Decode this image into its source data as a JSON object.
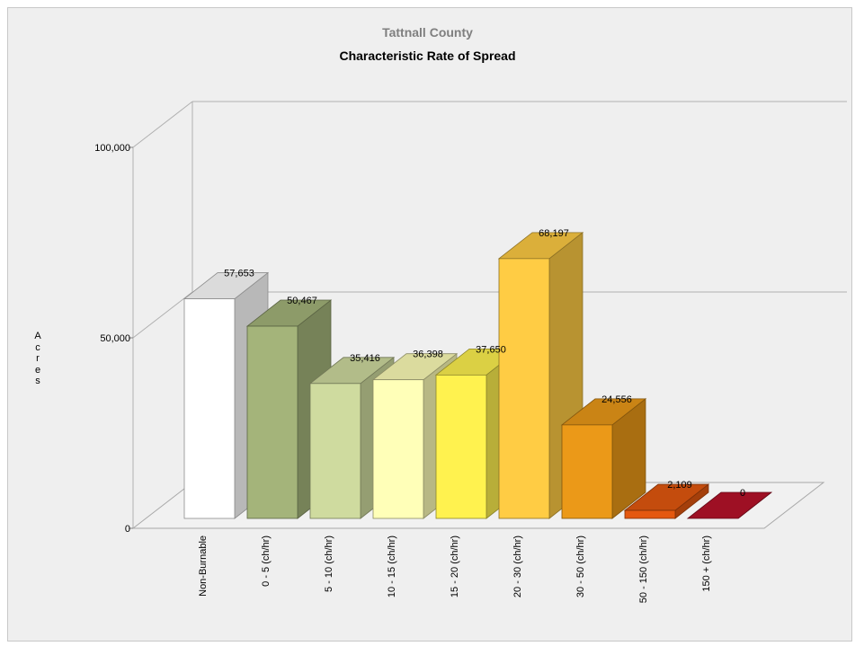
{
  "chart_data": {
    "type": "bar",
    "title": "Tattnall County",
    "subtitle": "Characteristic Rate of Spread",
    "ylabel": "Acres",
    "xlabel": "",
    "ylim": [
      0,
      100000
    ],
    "yticks": [
      0,
      50000,
      100000
    ],
    "ytick_labels": [
      "0",
      "50,000",
      "100,000"
    ],
    "grid": true,
    "three_d": true,
    "categories": [
      "Non-Burnable",
      "0 - 5 (ch/hr)",
      "5 - 10 (ch/hr)",
      "10 - 15 (ch/hr)",
      "15 - 20 (ch/hr)",
      "20 - 30 (ch/hr)",
      "30 - 50 (ch/hr)",
      "50 - 150 (ch/hr)",
      "150 + (ch/hr)"
    ],
    "values": [
      57653,
      50467,
      35416,
      36398,
      37650,
      68197,
      24556,
      2109,
      0
    ],
    "value_labels": [
      "57,653",
      "50,467",
      "35,416",
      "36,398",
      "37,650",
      "68,197",
      "24,556",
      "2,109",
      "0"
    ],
    "colors": [
      "#ffffff",
      "#a4b47a",
      "#cfdb9f",
      "#ffffb8",
      "#fff24f",
      "#ffcc44",
      "#eb9918",
      "#e4580f",
      "#b8132a"
    ]
  }
}
